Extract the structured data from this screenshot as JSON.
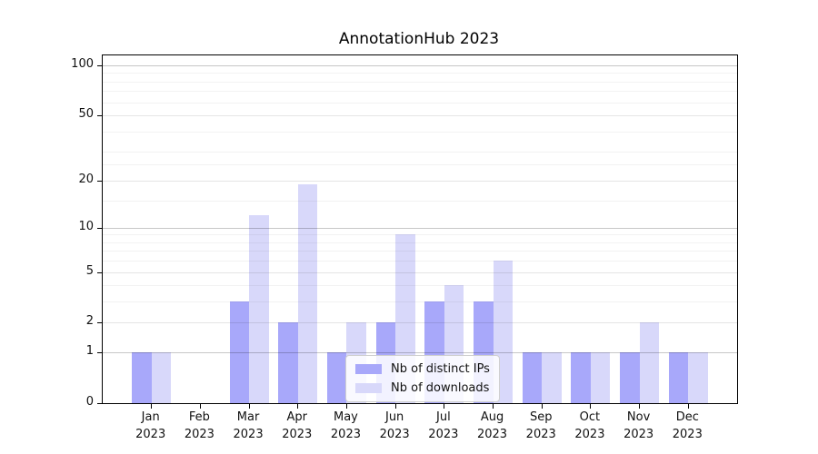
{
  "chart_data": {
    "type": "bar",
    "title": "AnnotationHub 2023",
    "y_scale": "log10(1+v)",
    "categories": [
      "Jan 2023",
      "Feb 2023",
      "Mar 2023",
      "Apr 2023",
      "May 2023",
      "Jun 2023",
      "Jul 2023",
      "Aug 2023",
      "Sep 2023",
      "Oct 2023",
      "Nov 2023",
      "Dec 2023"
    ],
    "month_labels": [
      "Jan",
      "Feb",
      "Mar",
      "Apr",
      "May",
      "Jun",
      "Jul",
      "Aug",
      "Sep",
      "Oct",
      "Nov",
      "Dec"
    ],
    "year_label": "2023",
    "series": [
      {
        "name": "Nb of distinct IPs",
        "color": "#a8a8fa",
        "values": [
          1,
          0,
          3,
          2,
          1,
          2,
          3,
          3,
          1,
          1,
          1,
          1
        ]
      },
      {
        "name": "Nb of downloads",
        "color": "#d8d8fa",
        "values": [
          1,
          0,
          12,
          19,
          2,
          9,
          4,
          6,
          1,
          1,
          2,
          1
        ]
      }
    ],
    "y_ticks": [
      0,
      1,
      2,
      5,
      10,
      20,
      50,
      100
    ],
    "y_major_gridline_values": [
      1,
      10,
      100
    ],
    "y_minor_gridlines": [
      3,
      4,
      6,
      7,
      8,
      9,
      15,
      25,
      30,
      40,
      60,
      70,
      80,
      90
    ],
    "ylim": [
      0,
      100
    ],
    "xlabel": "",
    "ylabel": "",
    "grid": "on",
    "legend_position": "lower center"
  },
  "style_colors": {
    "bar_distinct_ips": "#a8a8fa",
    "bar_downloads": "#d8d8fa",
    "major_grid": "#c6c6c6",
    "mid_grid": "#e6e6e6",
    "minor_grid": "#f2f2f2",
    "axis": "#000000",
    "text": "#111111"
  }
}
